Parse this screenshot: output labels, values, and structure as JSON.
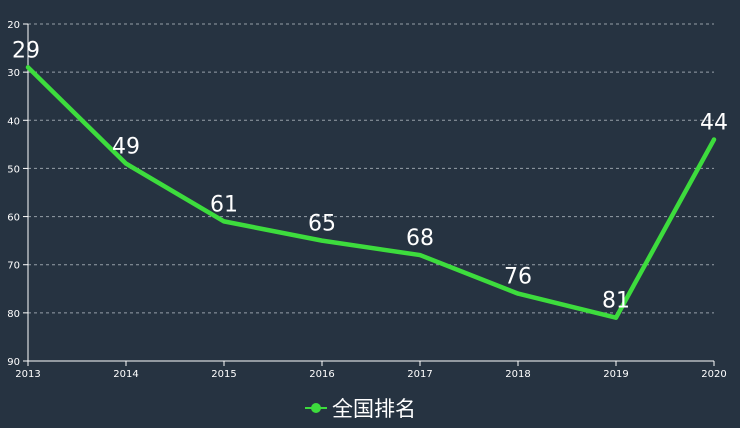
{
  "chart_data": {
    "type": "line",
    "x": [
      "2013",
      "2014",
      "2015",
      "2016",
      "2017",
      "2018",
      "2019",
      "2020"
    ],
    "series": [
      {
        "name": "全国排名",
        "values": [
          29,
          49,
          61,
          65,
          68,
          76,
          81,
          44
        ],
        "color": "#3ddc3d"
      }
    ],
    "y_ticks": [
      20,
      30,
      40,
      50,
      60,
      70,
      80,
      90
    ],
    "ylim": [
      20,
      90
    ],
    "y_inverted": true,
    "grid": true,
    "grid_style": "dashed",
    "legend_position": "bottom-center",
    "data_labels": true,
    "title": "",
    "xlabel": "",
    "ylabel": "",
    "background_color": "#263341",
    "axis_color": "#ffffff"
  }
}
